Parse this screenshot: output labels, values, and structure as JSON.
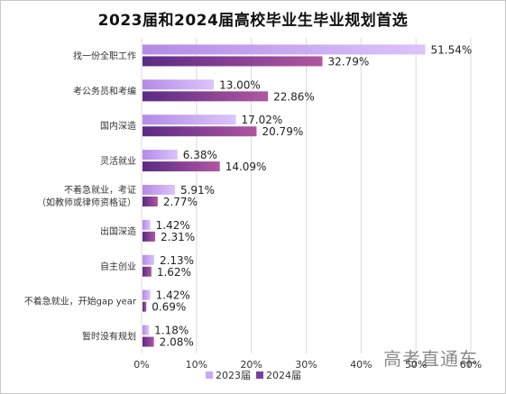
{
  "chart_data": {
    "type": "bar",
    "orientation": "horizontal",
    "title": "2023届和2024届高校毕业生毕业规划首选",
    "categories": [
      [
        "找一份全职工作"
      ],
      [
        "考公务员和考编"
      ],
      [
        "国内深造"
      ],
      [
        "灵活就业"
      ],
      [
        "不着急就业，考证",
        "（如教师或律师资格证）"
      ],
      [
        "出国深造"
      ],
      [
        "自主创业"
      ],
      [
        "不着急就业，开始gap year"
      ],
      [
        "暂时没有规划"
      ]
    ],
    "series": [
      {
        "name": "2023届",
        "values": [
          51.54,
          13.0,
          17.02,
          6.38,
          5.91,
          1.42,
          2.13,
          1.42,
          1.18
        ],
        "labels": [
          "51.54%",
          "13.00%",
          "17.02%",
          "6.38%",
          "5.91%",
          "1.42%",
          "2.13%",
          "1.42%",
          "1.18%"
        ],
        "color": "#c9a8f5"
      },
      {
        "name": "2024届",
        "values": [
          32.79,
          22.86,
          20.79,
          14.09,
          2.77,
          2.31,
          1.62,
          0.69,
          2.08
        ],
        "labels": [
          "32.79%",
          "22.86%",
          "20.79%",
          "14.09%",
          "2.77%",
          "2.31%",
          "1.62%",
          "0.69%",
          "2.08%"
        ],
        "color": "#7b3f9e"
      }
    ],
    "xlim": [
      0,
      60
    ],
    "xticks": [
      "0%",
      "10%",
      "20%",
      "30%",
      "40%",
      "50%",
      "60%"
    ],
    "grid": true,
    "legend_position": "bottom"
  },
  "watermark": "高考直通车"
}
